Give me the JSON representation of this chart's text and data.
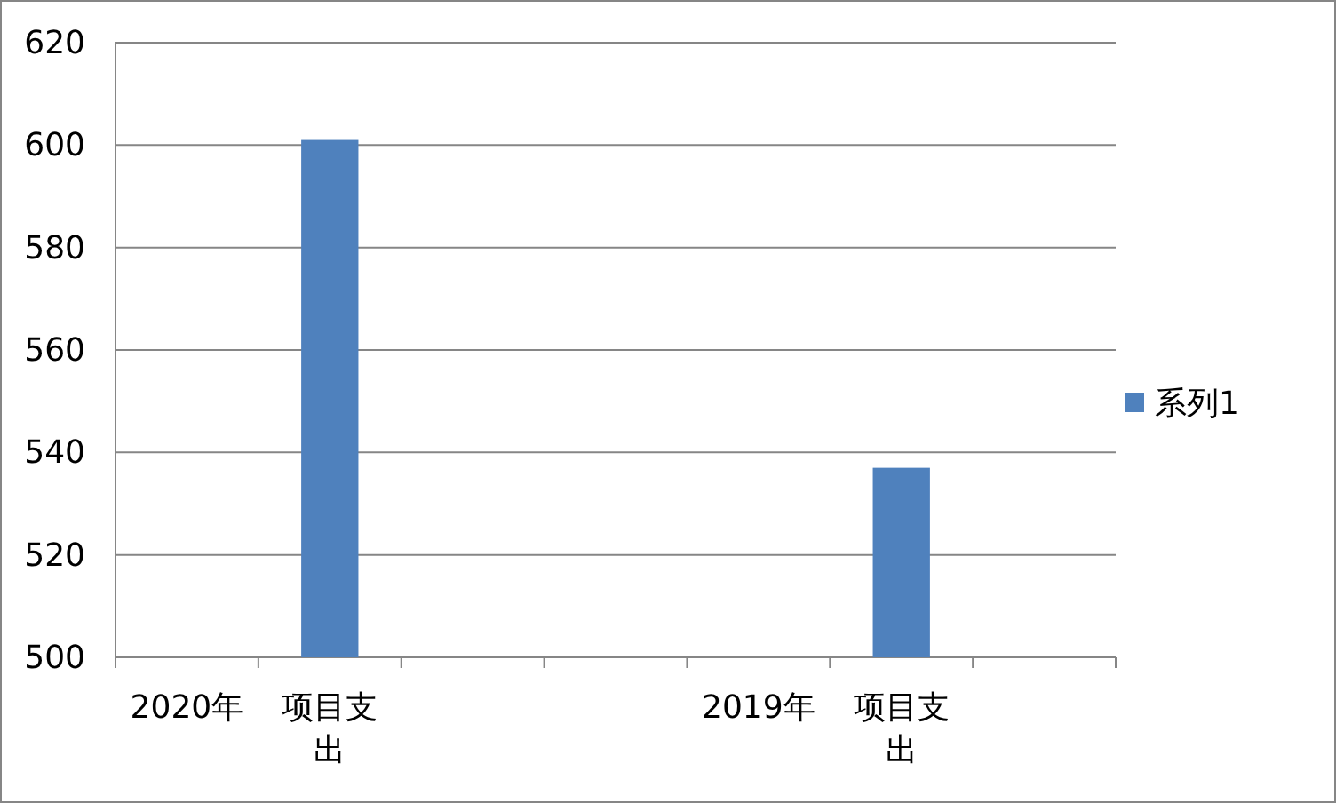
{
  "chart_data": {
    "type": "bar",
    "categories": [
      "2020年",
      "项目支出",
      null,
      null,
      "2019年",
      "项目支出",
      null
    ],
    "series": [
      {
        "name": "系列1",
        "color": "#4f81bd",
        "values": [
          null,
          601,
          null,
          null,
          null,
          537,
          null
        ]
      }
    ],
    "ylim": [
      500,
      620
    ],
    "yticks": [
      500,
      520,
      540,
      560,
      580,
      600,
      620
    ],
    "grid": "y",
    "legend": "right"
  }
}
